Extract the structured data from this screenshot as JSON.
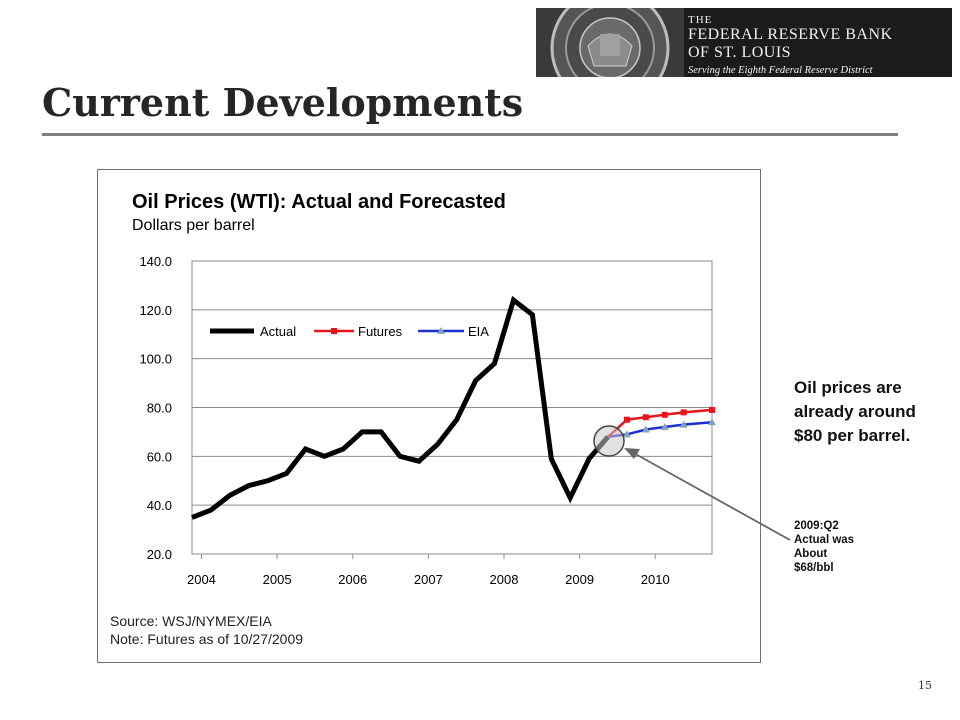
{
  "slide": {
    "title": "Current Developments",
    "page_number": "15"
  },
  "logo": {
    "line1": "THE",
    "line2": "FEDERAL RESERVE BANK",
    "line3": "OF ST. LOUIS",
    "line4": "Serving the Eighth Federal Reserve District"
  },
  "side_note": "Oil prices are already around $80 per barrel.",
  "callout": {
    "lines": [
      "2009:Q2",
      "Actual was",
      "About",
      "$68/bbl"
    ]
  },
  "colors": {
    "actual": "#000000",
    "futures": "#e8141b",
    "eia": "#1f2fd6",
    "eia_marker": "#7fa6b5",
    "title_rule": "#7f7f7f"
  },
  "chart_data": {
    "type": "line",
    "title": "Oil Prices (WTI): Actual and Forecasted",
    "subtitle": "Dollars per barrel",
    "source": "Source: WSJ/NYMEX/EIA",
    "note": "Note: Futures as of 10/27/2009",
    "ylim": [
      20,
      140
    ],
    "yticks": [
      "140.0",
      "120.0",
      "100.0",
      "80.0",
      "60.0",
      "40.0",
      "20.0"
    ],
    "ytick_values": [
      140,
      120,
      100,
      80,
      60,
      40,
      20
    ],
    "xticks": [
      "2004",
      "2005",
      "2006",
      "2007",
      "2008",
      "2009",
      "2010"
    ],
    "xtick_values": [
      2004,
      2005,
      2006,
      2007,
      2008,
      2009,
      2010
    ],
    "xlim": [
      2003.875,
      2010.75
    ],
    "grid": "horizontal",
    "legend_placement": "top-left",
    "series": [
      {
        "name": "Actual",
        "points": [
          [
            2003.875,
            35
          ],
          [
            2004.125,
            38
          ],
          [
            2004.375,
            44
          ],
          [
            2004.625,
            48
          ],
          [
            2004.875,
            50
          ],
          [
            2005.125,
            53
          ],
          [
            2005.375,
            63
          ],
          [
            2005.625,
            60
          ],
          [
            2005.875,
            63
          ],
          [
            2006.125,
            70
          ],
          [
            2006.375,
            70
          ],
          [
            2006.625,
            60
          ],
          [
            2006.875,
            58
          ],
          [
            2007.125,
            65
          ],
          [
            2007.375,
            75
          ],
          [
            2007.625,
            91
          ],
          [
            2007.875,
            98
          ],
          [
            2008.125,
            124
          ],
          [
            2008.375,
            118
          ],
          [
            2008.625,
            59
          ],
          [
            2008.875,
            43
          ],
          [
            2009.125,
            59
          ],
          [
            2009.375,
            68
          ]
        ]
      },
      {
        "name": "Futures",
        "points": [
          [
            2009.375,
            68
          ],
          [
            2009.625,
            75
          ],
          [
            2009.875,
            76
          ],
          [
            2010.125,
            77
          ],
          [
            2010.375,
            78
          ],
          [
            2010.75,
            79
          ]
        ]
      },
      {
        "name": "EIA",
        "points": [
          [
            2009.375,
            68
          ],
          [
            2009.625,
            69
          ],
          [
            2009.875,
            71
          ],
          [
            2010.125,
            72
          ],
          [
            2010.375,
            73
          ],
          [
            2010.75,
            74
          ]
        ]
      }
    ]
  }
}
